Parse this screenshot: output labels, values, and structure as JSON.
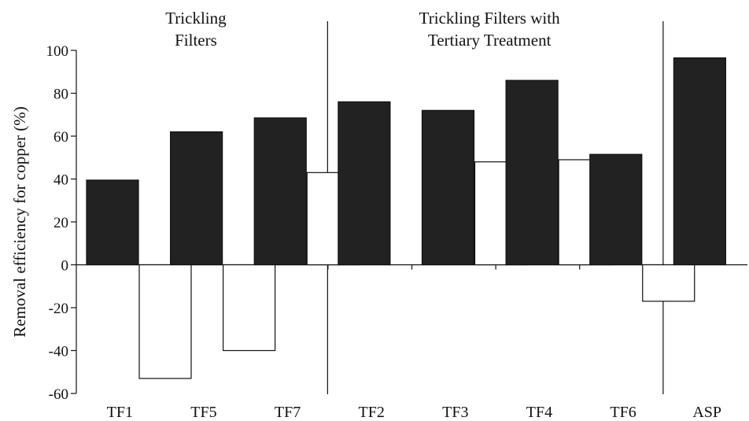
{
  "chart_data": {
    "type": "bar",
    "ylabel": "Removal efficiency for copper (%)",
    "xlabel": "",
    "ylim": [
      -60,
      100
    ],
    "yticks": [
      100,
      80,
      60,
      40,
      20,
      0,
      -20,
      -40,
      -60
    ],
    "categories": [
      "TF1",
      "TF5",
      "TF7",
      "TF2",
      "TF3",
      "TF4",
      "TF6",
      "ASP"
    ],
    "series": [
      {
        "color": "#222222",
        "values": [
          39.5,
          62,
          68.5,
          76,
          72,
          86,
          51.5,
          96.5
        ]
      },
      {
        "color": "#ffffff",
        "values": [
          -53,
          -40,
          43,
          null,
          48,
          49,
          -17,
          null
        ]
      }
    ],
    "groups": [
      {
        "label_lines": [
          "Trickling",
          "Filters"
        ],
        "categories": [
          "TF1",
          "TF5",
          "TF7"
        ]
      },
      {
        "label_lines": [
          "Trickling Filters with",
          "Tertiary Treatment"
        ],
        "categories": [
          "TF2",
          "TF3",
          "TF4",
          "TF6"
        ]
      },
      {
        "label_lines": [],
        "categories": [
          "ASP"
        ]
      }
    ],
    "grid": false,
    "legend": "none"
  }
}
